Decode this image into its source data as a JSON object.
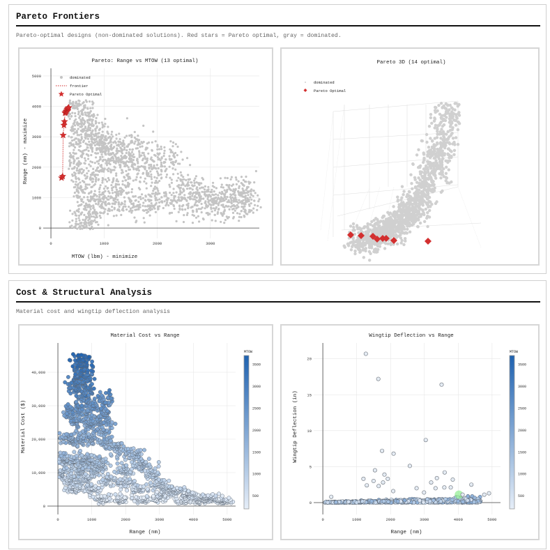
{
  "sections": [
    {
      "title": "Pareto Frontiers",
      "subtitle": "Pareto-optimal designs (non-dominated solutions). Red stars = Pareto optimal, gray = dominated."
    },
    {
      "title": "Cost & Structural Analysis",
      "subtitle": "Material cost and wingtip deflection analysis"
    }
  ],
  "colors": {
    "dominated": "#c4c4c4",
    "pareto": "#d32f2f",
    "colorscale_low": "#e6eef8",
    "colorscale_high": "#1f62b0",
    "highlight": "#90ee90"
  },
  "chart_data": [
    {
      "id": "pareto2d",
      "type": "scatter",
      "title": "Pareto: Range vs MTOW (13 optimal)",
      "xlabel": "MTOW (lbm) - minimize",
      "ylabel": "Range (nm) - maximize",
      "xlim": [
        -145,
        3920
      ],
      "ylim": [
        -340,
        5250
      ],
      "xticks": [
        {
          "v": 0,
          "label": "0"
        },
        {
          "v": 1000,
          "label": "1000"
        },
        {
          "v": 2000,
          "label": "2000"
        },
        {
          "v": 3000,
          "label": "3000"
        }
      ],
      "yticks": [
        {
          "v": 0,
          "label": "0"
        },
        {
          "v": 1000,
          "label": "1000"
        },
        {
          "v": 2000,
          "label": "2000"
        },
        {
          "v": 3000,
          "label": "3000"
        },
        {
          "v": 4000,
          "label": "4000"
        },
        {
          "v": 5000,
          "label": "5000"
        }
      ],
      "grid": true,
      "legend": {
        "placement": "top-left",
        "entries": [
          "dominated",
          "frontier",
          "Pareto Optimal"
        ]
      },
      "series": [
        {
          "name": "dominated",
          "marker": "circle",
          "points": [
            [
              400,
              4100
            ],
            [
              500,
              3950
            ],
            [
              600,
              3600
            ],
            [
              700,
              3300
            ],
            [
              800,
              3000
            ],
            [
              900,
              2800
            ],
            [
              1000,
              2600
            ],
            [
              1200,
              2400
            ],
            [
              1400,
              2200
            ],
            [
              1600,
              2000
            ],
            [
              1900,
              1800
            ],
            [
              2250,
              2250
            ],
            [
              2500,
              1400
            ],
            [
              2800,
              1200
            ],
            [
              3000,
              1050
            ],
            [
              3300,
              900
            ],
            [
              3480,
              1400
            ],
            [
              3650,
              1000
            ],
            [
              3600,
              700
            ],
            [
              400,
              2500
            ],
            [
              500,
              2000
            ],
            [
              600,
              1500
            ],
            [
              700,
              1000
            ],
            [
              800,
              600
            ],
            [
              600,
              300
            ],
            [
              650,
              50
            ],
            [
              1000,
              1000
            ],
            [
              1200,
              800
            ],
            [
              1500,
              900
            ],
            [
              1800,
              800
            ],
            [
              2000,
              1000
            ],
            [
              2400,
              800
            ],
            [
              2700,
              700
            ],
            [
              3200,
              750
            ],
            [
              500,
              3000
            ],
            [
              900,
              1800
            ],
            [
              1300,
              1400
            ],
            [
              1100,
              2700
            ],
            [
              1500,
              2800
            ],
            [
              1900,
              2400
            ]
          ]
        },
        {
          "name": "frontier",
          "marker": "dotted-line"
        },
        {
          "name": "Pareto Optimal",
          "marker": "star",
          "points": [
            [
              200,
              1650
            ],
            [
              220,
              1700
            ],
            [
              230,
              3050
            ],
            [
              245,
              3380
            ],
            [
              255,
              3500
            ],
            [
              265,
              3780
            ],
            [
              275,
              3800
            ],
            [
              285,
              3830
            ],
            [
              295,
              3860
            ],
            [
              305,
              3900
            ],
            [
              315,
              3920
            ],
            [
              325,
              3940
            ],
            [
              335,
              3960
            ]
          ]
        }
      ]
    },
    {
      "id": "pareto3d",
      "type": "scatter3d",
      "title": "Pareto 3D (14 optimal)",
      "legend": {
        "placement": "top-left",
        "entries": [
          "dominated",
          "Pareto Optimal"
        ]
      }
    },
    {
      "id": "cost",
      "type": "scatter",
      "title": "Material Cost vs Range",
      "xlabel": "Range (nm)",
      "ylabel": "Material Cost ($)",
      "xlim": [
        -310,
        5250
      ],
      "ylim": [
        -2500,
        48750
      ],
      "xticks": [
        {
          "v": 0,
          "label": "0"
        },
        {
          "v": 1000,
          "label": "1000"
        },
        {
          "v": 2000,
          "label": "2000"
        },
        {
          "v": 3000,
          "label": "3000"
        },
        {
          "v": 4000,
          "label": "4000"
        },
        {
          "v": 5000,
          "label": "5000"
        }
      ],
      "yticks": [
        {
          "v": 0,
          "label": "0"
        },
        {
          "v": 10000,
          "label": "10,000"
        },
        {
          "v": 20000,
          "label": "20,000"
        },
        {
          "v": 30000,
          "label": "30,000"
        },
        {
          "v": 40000,
          "label": "40,000"
        }
      ],
      "grid": true,
      "colorbar": {
        "title": "MTOW",
        "range": [
          200,
          3700
        ],
        "ticks": [
          {
            "v": 500,
            "label": "500"
          },
          {
            "v": 1000,
            "label": "1000"
          },
          {
            "v": 1500,
            "label": "1500"
          },
          {
            "v": 2000,
            "label": "2000"
          },
          {
            "v": 2500,
            "label": "2500"
          },
          {
            "v": 3000,
            "label": "3000"
          },
          {
            "v": 3500,
            "label": "3500"
          }
        ]
      },
      "points": [
        [
          650,
          45000
        ],
        [
          700,
          42000
        ],
        [
          800,
          40000
        ],
        [
          600,
          38000
        ],
        [
          500,
          36000
        ],
        [
          900,
          35000
        ],
        [
          700,
          32000
        ],
        [
          1000,
          30000
        ],
        [
          1400,
          31500
        ],
        [
          400,
          28000
        ],
        [
          600,
          26000
        ],
        [
          900,
          25000
        ],
        [
          1200,
          24000
        ],
        [
          1400,
          26000
        ],
        [
          300,
          20000
        ],
        [
          600,
          20000
        ],
        [
          1000,
          20000
        ],
        [
          1500,
          19000
        ],
        [
          2250,
          15500
        ],
        [
          1800,
          17000
        ],
        [
          200,
          14000
        ],
        [
          500,
          14000
        ],
        [
          900,
          14000
        ],
        [
          1300,
          13000
        ],
        [
          2500,
          12000
        ],
        [
          2800,
          10000
        ],
        [
          100,
          10000
        ],
        [
          400,
          8000
        ],
        [
          800,
          8000
        ],
        [
          1500,
          8000
        ],
        [
          2000,
          7000
        ],
        [
          3000,
          6500
        ],
        [
          3200,
          5000
        ],
        [
          3500,
          4500
        ],
        [
          3900,
          3500
        ],
        [
          4300,
          2500
        ],
        [
          4600,
          2000
        ],
        [
          4900,
          1500
        ],
        [
          1300,
          2000
        ],
        [
          1800,
          2000
        ],
        [
          2500,
          2000
        ],
        [
          3000,
          2500
        ],
        [
          3700,
          1500
        ],
        [
          4200,
          1500
        ],
        [
          500,
          5000
        ],
        [
          1000,
          5000
        ],
        [
          700,
          11000
        ],
        [
          1100,
          11000
        ],
        [
          2400,
          5000
        ],
        [
          2000,
          11000
        ]
      ]
    },
    {
      "id": "deflection",
      "type": "scatter",
      "title": "Wingtip Deflection vs Range",
      "xlabel": "Range (nm)",
      "ylabel": "Wingtip Deflection (in)",
      "xlim": [
        -270,
        5250
      ],
      "ylim": [
        -1.65,
        22.2
      ],
      "xticks": [
        {
          "v": 0,
          "label": "0"
        },
        {
          "v": 1000,
          "label": "1000"
        },
        {
          "v": 2000,
          "label": "2000"
        },
        {
          "v": 3000,
          "label": "3000"
        },
        {
          "v": 4000,
          "label": "4000"
        },
        {
          "v": 5000,
          "label": "5000"
        }
      ],
      "yticks": [
        {
          "v": 0,
          "label": "0"
        },
        {
          "v": 5,
          "label": "5"
        },
        {
          "v": 10,
          "label": "10"
        },
        {
          "v": 15,
          "label": "15"
        },
        {
          "v": 20,
          "label": "20"
        }
      ],
      "grid": true,
      "colorbar": {
        "title": "MTOW",
        "range": [
          200,
          3700
        ],
        "ticks": [
          {
            "v": 500,
            "label": "500"
          },
          {
            "v": 1000,
            "label": "1000"
          },
          {
            "v": 1500,
            "label": "1500"
          },
          {
            "v": 2000,
            "label": "2000"
          },
          {
            "v": 2500,
            "label": "2500"
          },
          {
            "v": 3000,
            "label": "3000"
          },
          {
            "v": 3500,
            "label": "3500"
          }
        ]
      },
      "points": [
        [
          1270,
          20.7
        ],
        [
          1640,
          17.2
        ],
        [
          3510,
          16.4
        ],
        [
          1750,
          7.2
        ],
        [
          2090,
          6.8
        ],
        [
          3040,
          8.7
        ],
        [
          2570,
          5.1
        ],
        [
          1540,
          4.5
        ],
        [
          3600,
          4.2
        ],
        [
          1200,
          3.3
        ],
        [
          1500,
          3.0
        ],
        [
          1820,
          3.9
        ],
        [
          1920,
          3.3
        ],
        [
          3370,
          3.4
        ],
        [
          3840,
          3.2
        ],
        [
          4390,
          2.5
        ],
        [
          3200,
          2.8
        ],
        [
          1300,
          2.4
        ],
        [
          2770,
          2.0
        ],
        [
          3330,
          2.0
        ],
        [
          3590,
          2.1
        ],
        [
          3780,
          2.1
        ],
        [
          4910,
          1.3
        ],
        [
          4770,
          1.1
        ],
        [
          250,
          0.8
        ],
        [
          1650,
          2.3
        ],
        [
          1780,
          2.8
        ],
        [
          2080,
          1.6
        ],
        [
          2990,
          1.4
        ],
        [
          4130,
          1.1
        ]
      ],
      "highlight": [
        4020,
        1.1
      ]
    }
  ]
}
